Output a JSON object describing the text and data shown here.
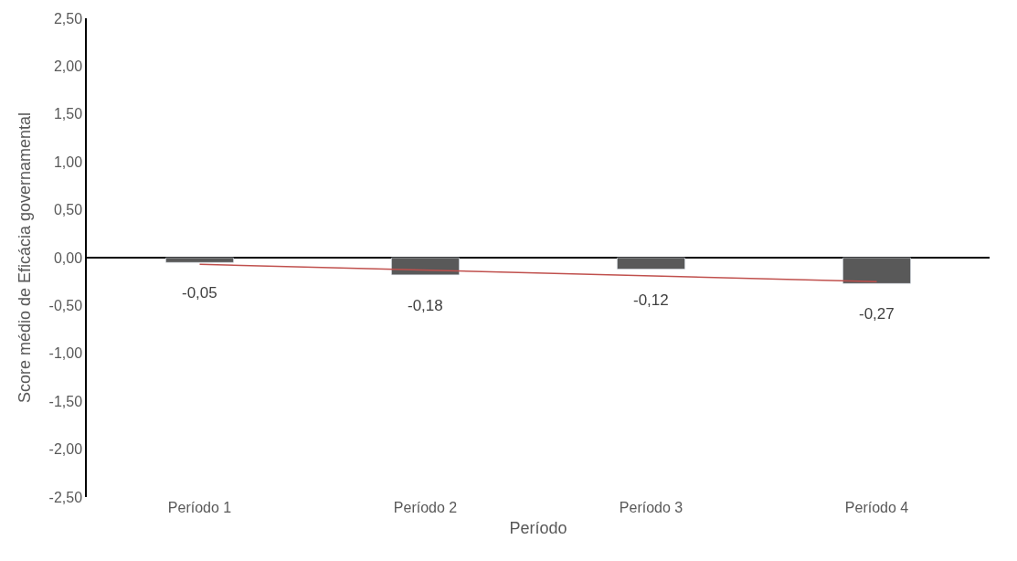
{
  "chart_data": {
    "type": "bar",
    "xlabel": "Período",
    "ylabel": "Score médio de Eficácia governamental",
    "categories": [
      "Período 1",
      "Período 2",
      "Período 3",
      "Período 4"
    ],
    "series": [
      {
        "color": "#595959",
        "values": [
          -0.05,
          -0.18,
          -0.12,
          -0.27
        ],
        "value_labels": [
          "-0,05",
          "-0,18",
          "-0,12",
          "-0,27"
        ]
      },
      {
        "type": "line",
        "color": "#c0504d",
        "x": [
          "Período 1",
          "Período 4"
        ],
        "values": [
          -0.07,
          -0.25
        ],
        "marker": "none"
      }
    ],
    "ylim": [
      -2.5,
      2.5
    ],
    "yticks": [
      {
        "value": -2.5,
        "label": "-2,50"
      },
      {
        "value": -2,
        "label": "-2,00"
      },
      {
        "value": -1.5,
        "label": "-1,50"
      },
      {
        "value": -1,
        "label": "-1,00"
      },
      {
        "value": -0.5,
        "label": "-0,50"
      },
      {
        "value": 0,
        "label": "0,00"
      },
      {
        "value": 0.5,
        "label": "0,50"
      },
      {
        "value": 1,
        "label": "1,00"
      },
      {
        "value": 1.5,
        "label": "1,50"
      },
      {
        "value": 2,
        "label": "2,00"
      },
      {
        "value": 2.5,
        "label": "2,50"
      }
    ],
    "legend": false
  }
}
